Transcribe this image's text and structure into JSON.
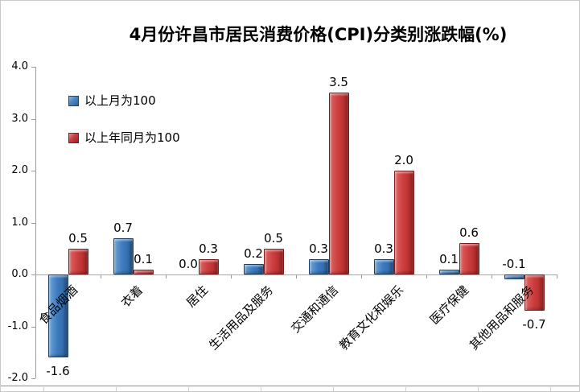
{
  "page": {
    "title": "4月份许昌市居民消费价格(CPI)分类别涨跌幅(%)"
  },
  "chart_data": {
    "type": "bar",
    "title": "4月份许昌市居民消费价格(CPI)分类别涨跌幅(%)",
    "categories": [
      "食品烟酒",
      "衣着",
      "居住",
      "生活用品及服务",
      "交通和通信",
      "教育文化和娱乐",
      "医疗保健",
      "其他用品和服务"
    ],
    "series": [
      {
        "name": "以上月为100",
        "color": "#3d7bbe",
        "values": [
          -1.6,
          0.7,
          0.0,
          0.2,
          0.3,
          0.3,
          0.1,
          -0.1
        ]
      },
      {
        "name": "以上年同月为100",
        "color": "#cb3e3e",
        "values": [
          0.5,
          0.1,
          0.3,
          0.5,
          3.5,
          2.0,
          0.6,
          -0.7
        ]
      }
    ],
    "xlabel": "",
    "ylabel": "",
    "unit_suffix": "%",
    "ylim": [
      -2.0,
      4.0
    ],
    "ytick_step": 1.0,
    "yticks": [
      4.0,
      3.0,
      2.0,
      1.0,
      0.0,
      -1.0,
      -2.0
    ],
    "grid": false,
    "legend_position": "inside-top-left",
    "data_labels": "outside-end",
    "category_label_rotation_deg": 45
  }
}
